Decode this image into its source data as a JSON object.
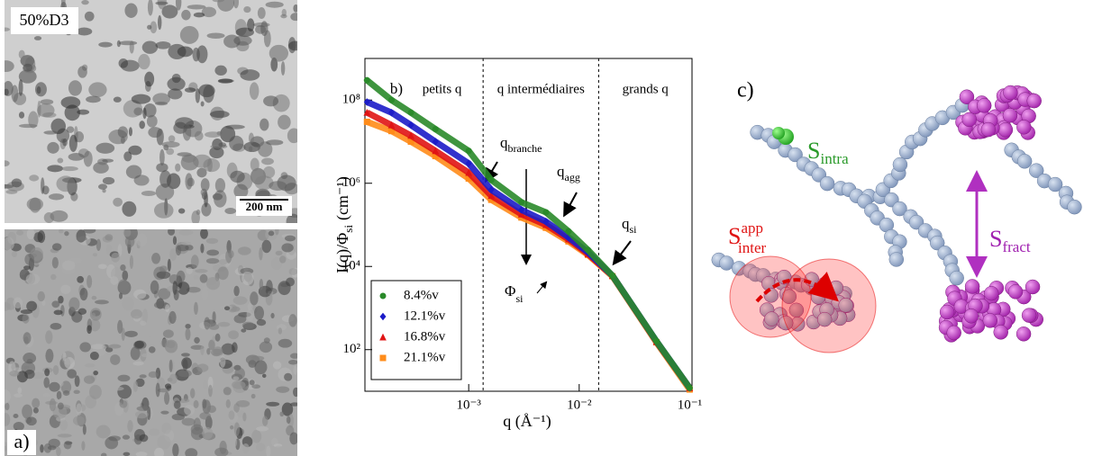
{
  "panel_a": {
    "sample": "50%D3",
    "scale_bar": "200 nm",
    "label": "a)"
  },
  "chart_data": {
    "type": "scatter",
    "panel_label": "b)",
    "x_label": "q (Å⁻¹)",
    "y_label": {
      "main": "I(q)/Φ",
      "sub": "si",
      "unit": "(cm⁻¹)"
    },
    "xscale": "log",
    "yscale": "log",
    "xlim": [
      0.000115,
      0.105
    ],
    "ylim": [
      10,
      1000000000
    ],
    "xticks": [
      {
        "value": 0.001,
        "label": "10⁻³"
      },
      {
        "value": 0.01,
        "label": "10⁻²"
      },
      {
        "value": 0.1,
        "label": "10⁻¹"
      }
    ],
    "yticks": [
      {
        "value": 100,
        "label": "10²"
      },
      {
        "value": 10000,
        "label": "10⁴"
      },
      {
        "value": 1000000,
        "label": "10⁶"
      },
      {
        "value": 100000000,
        "label": "10⁸"
      }
    ],
    "regions": {
      "bounds": [
        0.00135,
        0.015
      ],
      "labels": [
        "petits q",
        "q intermédiaires",
        "grands q"
      ]
    },
    "annotations": {
      "q_branche": {
        "text": "q",
        "sub": "branche"
      },
      "q_agg": {
        "text": "q",
        "sub": "agg"
      },
      "q_si": {
        "text": "q",
        "sub": "si"
      },
      "phi_si": {
        "text": "Φ",
        "sub": "si"
      }
    },
    "x": [
      0.00012,
      0.0002,
      0.0003,
      0.0005,
      0.001,
      0.0016,
      0.003,
      0.005,
      0.008,
      0.012,
      0.02,
      0.05,
      0.1
    ],
    "series": [
      {
        "name": "8.4%v",
        "color": "#2a8a2a",
        "marker": "circle",
        "values": [
          300000000,
          100000000,
          50000000,
          20000000,
          6000000,
          1200000,
          350000,
          200000,
          70000,
          25000,
          6000,
          160,
          12
        ]
      },
      {
        "name": "12.1%v",
        "color": "#1c1cc8",
        "marker": "diamond",
        "values": [
          90000000,
          50000000,
          25000000,
          10000000,
          3000000,
          700000,
          230000,
          120000,
          50000,
          22000,
          6000,
          160,
          12
        ]
      },
      {
        "name": "16.8%v",
        "color": "#e01414",
        "marker": "triangle",
        "values": [
          50000000,
          25000000,
          14000000,
          6000000,
          1800000,
          500000,
          180000,
          100000,
          45000,
          20000,
          6000,
          155,
          12
        ]
      },
      {
        "name": "21.1%v",
        "color": "#ff8c1a",
        "marker": "square",
        "values": [
          30000000,
          18000000,
          10000000,
          4500000,
          1300000,
          400000,
          150000,
          85000,
          40000,
          19000,
          5800,
          150,
          11
        ]
      }
    ],
    "legend": "lower left"
  },
  "panel_c": {
    "label": "c)",
    "s_intra": {
      "text": "S",
      "sub": "intra"
    },
    "s_inter": {
      "text": "S",
      "sup": "app",
      "sub": "inter"
    },
    "s_fract": {
      "text": "S",
      "sub": "fract"
    }
  }
}
